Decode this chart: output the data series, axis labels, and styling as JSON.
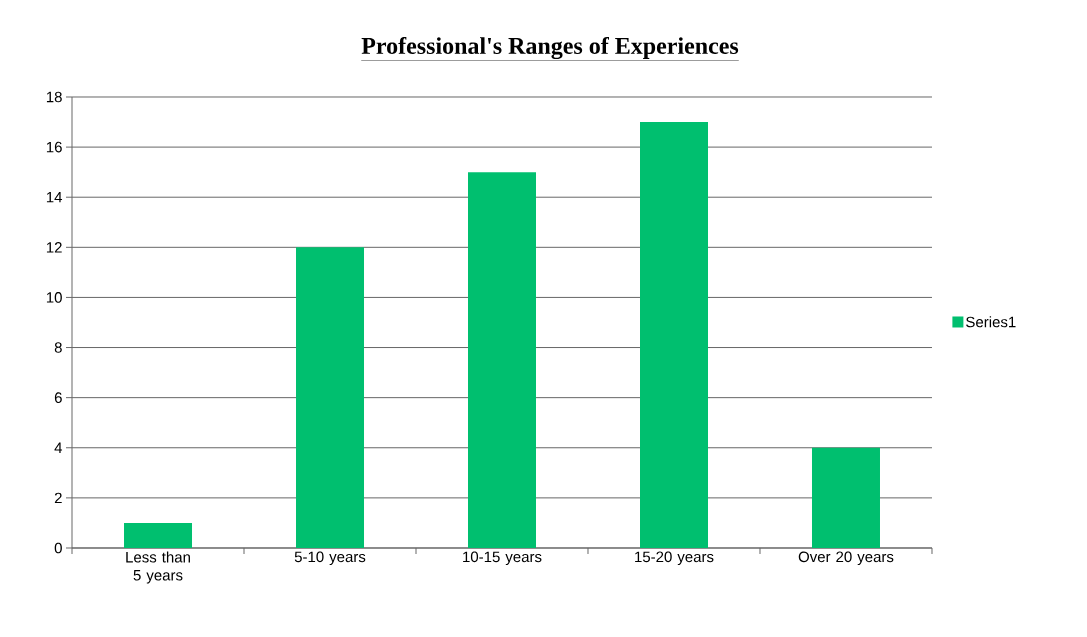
{
  "chart_data": {
    "type": "bar",
    "title": "Professional's  Ranges of Experiences",
    "categories": [
      "Less than 5 years",
      "5-10 years",
      "10-15 years",
      "15-20 years",
      "Over 20 years"
    ],
    "series": [
      {
        "name": "Series1",
        "color": "#00bf6f",
        "values": [
          1,
          12,
          15,
          17,
          4
        ]
      }
    ],
    "ylim": [
      0,
      18
    ],
    "yticks": [
      0,
      2,
      4,
      6,
      8,
      10,
      12,
      14,
      16,
      18
    ],
    "grid": "y",
    "legend": "right"
  }
}
